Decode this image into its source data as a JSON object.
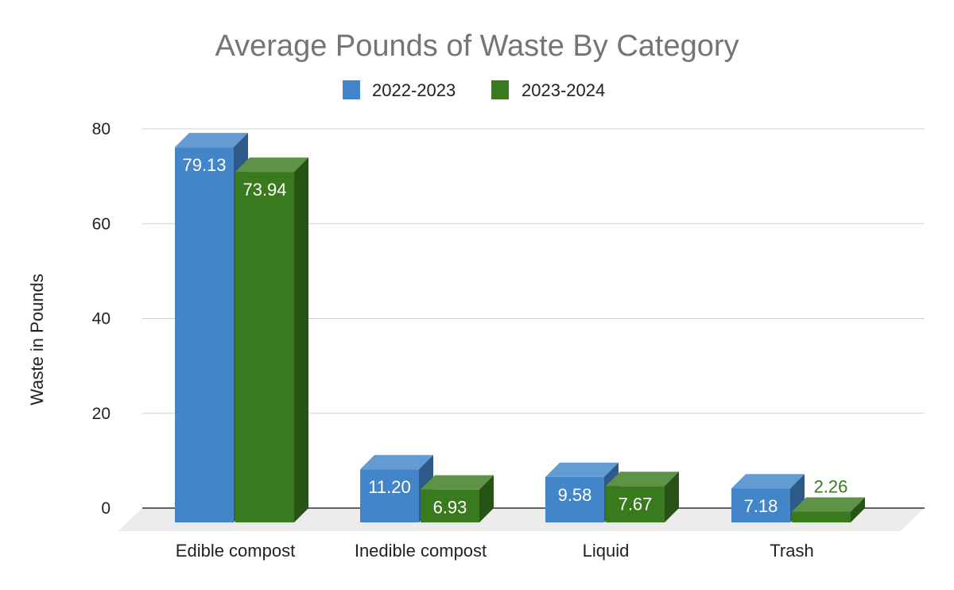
{
  "chart_data": {
    "type": "bar",
    "title": "Average Pounds of Waste By Category",
    "xlabel": "",
    "ylabel": "Waste in Pounds",
    "categories": [
      "Edible compost",
      "Inedible compost",
      "Liquid",
      "Trash"
    ],
    "series": [
      {
        "name": "2022-2023",
        "values": [
          79.13,
          11.2,
          9.58,
          7.18
        ],
        "labels": [
          "79.13",
          "11.20",
          "9.58",
          "7.18"
        ],
        "color": "#4285c8"
      },
      {
        "name": "2023-2024",
        "values": [
          73.94,
          6.93,
          7.67,
          2.26
        ],
        "labels": [
          "73.94",
          "6.93",
          "7.67",
          "2.26"
        ],
        "color": "#3a7a1e"
      }
    ],
    "yticks": [
      "0",
      "20",
      "40",
      "60",
      "80"
    ],
    "ylim": [
      0,
      80
    ],
    "grid": true,
    "legend_position": "top",
    "three_d": true
  }
}
